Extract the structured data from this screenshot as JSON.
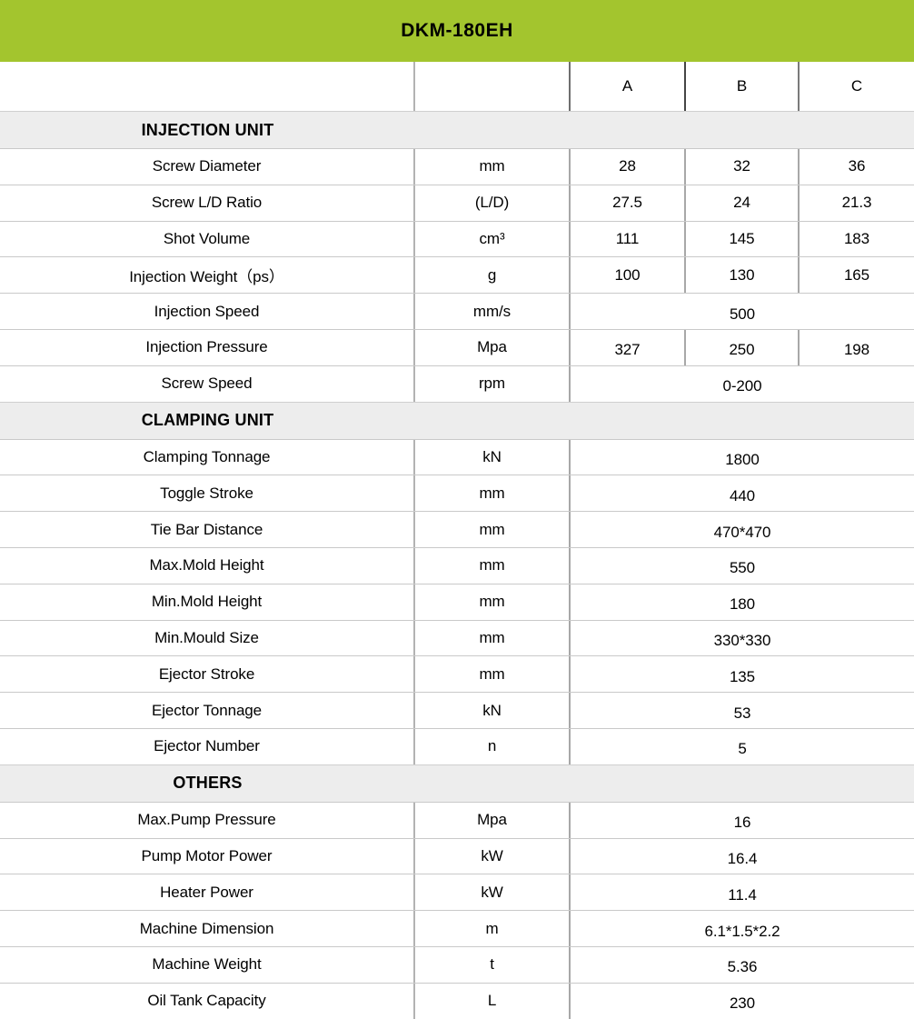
{
  "title": "DKM-180EH",
  "column_headers": [
    "A",
    "B",
    "C"
  ],
  "colors": {
    "header_green": "#a3c52e",
    "section_band_gray": "#ededed",
    "row_line": "#c9c9c9",
    "divider_gray": "#a8a8a8",
    "header_divider_dark": "#454545"
  },
  "sections": [
    {
      "name": "INJECTION UNIT",
      "rows": [
        {
          "label": "Screw Diameter",
          "unit": "mm",
          "values": [
            "28",
            "32",
            "36"
          ]
        },
        {
          "label": "Screw L/D Ratio",
          "unit": "(L/D)",
          "values": [
            "27.5",
            "24",
            "21.3"
          ]
        },
        {
          "label": "Shot Volume",
          "unit": "cm³",
          "values": [
            "111",
            "145",
            "183"
          ]
        },
        {
          "label": "Injection Weight（ps）",
          "unit": "g",
          "values": [
            "100",
            "130",
            "165"
          ]
        },
        {
          "label": "Injection Speed",
          "unit": "mm/s",
          "merged": "500"
        },
        {
          "label": "Injection Pressure",
          "unit": "Mpa",
          "values": [
            "327",
            "250",
            "198"
          ]
        },
        {
          "label": "Screw Speed",
          "unit": "rpm",
          "merged": "0-200"
        }
      ]
    },
    {
      "name": "CLAMPING UNIT",
      "rows": [
        {
          "label": "Clamping Tonnage",
          "unit": "kN",
          "merged": "1800"
        },
        {
          "label": "Toggle Stroke",
          "unit": "mm",
          "merged": "440"
        },
        {
          "label": "Tie Bar Distance",
          "unit": "mm",
          "merged": "470*470"
        },
        {
          "label": "Max.Mold Height",
          "unit": "mm",
          "merged": "550"
        },
        {
          "label": "Min.Mold Height",
          "unit": "mm",
          "merged": "180"
        },
        {
          "label": "Min.Mould Size",
          "unit": "mm",
          "merged": "330*330"
        },
        {
          "label": "Ejector Stroke",
          "unit": "mm",
          "merged": "135"
        },
        {
          "label": "Ejector Tonnage",
          "unit": "kN",
          "merged": "53"
        },
        {
          "label": "Ejector Number",
          "unit": "n",
          "merged": "5"
        }
      ]
    },
    {
      "name": "OTHERS",
      "rows": [
        {
          "label": "Max.Pump Pressure",
          "unit": "Mpa",
          "merged": "16"
        },
        {
          "label": "Pump Motor Power",
          "unit": "kW",
          "merged": "16.4"
        },
        {
          "label": "Heater Power",
          "unit": "kW",
          "merged": "11.4"
        },
        {
          "label": "Machine Dimension",
          "unit": "m",
          "merged": "6.1*1.5*2.2"
        },
        {
          "label": "Machine Weight",
          "unit": "t",
          "merged": "5.36"
        },
        {
          "label": "Oil Tank Capacity",
          "unit": "L",
          "merged": "230"
        }
      ]
    }
  ]
}
